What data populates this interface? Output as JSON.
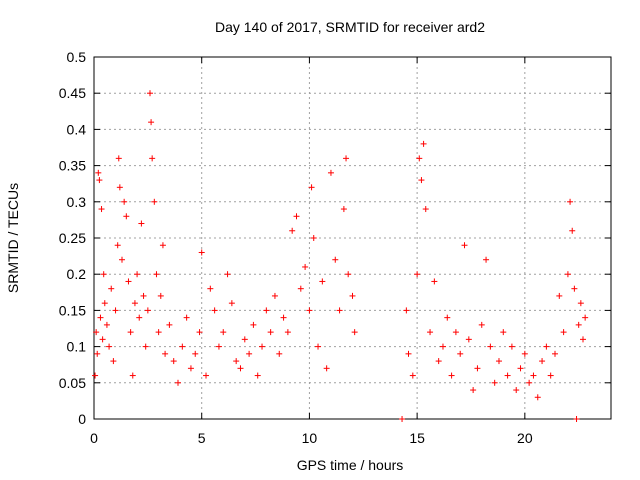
{
  "chart_data": {
    "type": "scatter",
    "title": "Day 140 of 2017, SRMTID for receiver ard2",
    "xlabel": "GPS time / hours",
    "ylabel": "SRMTID / TECUs",
    "xlim": [
      0,
      24
    ],
    "ylim": [
      0,
      0.5
    ],
    "x_ticks": [
      0,
      5,
      10,
      15,
      20
    ],
    "y_ticks": [
      0,
      0.05,
      0.1,
      0.15,
      0.2,
      0.25,
      0.3,
      0.35,
      0.4,
      0.45,
      0.5
    ],
    "x_tick_labels": [
      "0",
      "5",
      "10",
      "15",
      "20"
    ],
    "y_tick_labels": [
      "0",
      "0.05",
      "0.1",
      "0.15",
      "0.2",
      "0.25",
      "0.3",
      "0.35",
      "0.4",
      "0.45",
      "0.5"
    ],
    "grid": true,
    "marker": "+",
    "color": "#ff0000",
    "series": [
      {
        "name": "ard2",
        "points": [
          [
            0.05,
            0.06
          ],
          [
            0.1,
            0.12
          ],
          [
            0.15,
            0.09
          ],
          [
            0.2,
            0.34
          ],
          [
            0.25,
            0.33
          ],
          [
            0.3,
            0.14
          ],
          [
            0.35,
            0.29
          ],
          [
            0.4,
            0.11
          ],
          [
            0.45,
            0.2
          ],
          [
            0.5,
            0.16
          ],
          [
            0.6,
            0.13
          ],
          [
            0.7,
            0.1
          ],
          [
            0.8,
            0.18
          ],
          [
            0.9,
            0.08
          ],
          [
            1.0,
            0.15
          ],
          [
            1.1,
            0.24
          ],
          [
            1.15,
            0.36
          ],
          [
            1.2,
            0.32
          ],
          [
            1.3,
            0.22
          ],
          [
            1.4,
            0.3
          ],
          [
            1.5,
            0.28
          ],
          [
            1.6,
            0.19
          ],
          [
            1.7,
            0.12
          ],
          [
            1.8,
            0.06
          ],
          [
            1.9,
            0.16
          ],
          [
            2.0,
            0.2
          ],
          [
            2.1,
            0.14
          ],
          [
            2.2,
            0.27
          ],
          [
            2.3,
            0.17
          ],
          [
            2.4,
            0.1
          ],
          [
            2.5,
            0.15
          ],
          [
            2.6,
            0.45
          ],
          [
            2.65,
            0.41
          ],
          [
            2.7,
            0.36
          ],
          [
            2.8,
            0.3
          ],
          [
            2.9,
            0.2
          ],
          [
            3.0,
            0.12
          ],
          [
            3.1,
            0.17
          ],
          [
            3.2,
            0.24
          ],
          [
            3.3,
            0.09
          ],
          [
            3.5,
            0.13
          ],
          [
            3.7,
            0.08
          ],
          [
            3.9,
            0.05
          ],
          [
            4.1,
            0.1
          ],
          [
            4.3,
            0.14
          ],
          [
            4.5,
            0.07
          ],
          [
            4.7,
            0.09
          ],
          [
            4.9,
            0.12
          ],
          [
            5.0,
            0.23
          ],
          [
            5.2,
            0.06
          ],
          [
            5.4,
            0.18
          ],
          [
            5.6,
            0.15
          ],
          [
            5.8,
            0.1
          ],
          [
            6.0,
            0.12
          ],
          [
            6.2,
            0.2
          ],
          [
            6.4,
            0.16
          ],
          [
            6.6,
            0.08
          ],
          [
            6.8,
            0.07
          ],
          [
            7.0,
            0.11
          ],
          [
            7.2,
            0.09
          ],
          [
            7.4,
            0.13
          ],
          [
            7.6,
            0.06
          ],
          [
            7.8,
            0.1
          ],
          [
            8.0,
            0.15
          ],
          [
            8.2,
            0.12
          ],
          [
            8.4,
            0.17
          ],
          [
            8.6,
            0.09
          ],
          [
            8.8,
            0.14
          ],
          [
            9.0,
            0.12
          ],
          [
            9.2,
            0.26
          ],
          [
            9.4,
            0.28
          ],
          [
            9.6,
            0.18
          ],
          [
            9.8,
            0.21
          ],
          [
            10.0,
            0.15
          ],
          [
            10.1,
            0.32
          ],
          [
            10.2,
            0.25
          ],
          [
            10.4,
            0.1
          ],
          [
            10.6,
            0.19
          ],
          [
            10.8,
            0.07
          ],
          [
            11.0,
            0.34
          ],
          [
            11.2,
            0.22
          ],
          [
            11.4,
            0.15
          ],
          [
            11.6,
            0.29
          ],
          [
            11.7,
            0.36
          ],
          [
            11.8,
            0.2
          ],
          [
            12.0,
            0.17
          ],
          [
            12.1,
            0.12
          ],
          [
            14.3,
            0.0
          ],
          [
            14.5,
            0.15
          ],
          [
            14.6,
            0.09
          ],
          [
            14.8,
            0.06
          ],
          [
            15.0,
            0.2
          ],
          [
            15.1,
            0.36
          ],
          [
            15.2,
            0.33
          ],
          [
            15.3,
            0.38
          ],
          [
            15.4,
            0.29
          ],
          [
            15.6,
            0.12
          ],
          [
            15.8,
            0.19
          ],
          [
            16.0,
            0.08
          ],
          [
            16.2,
            0.1
          ],
          [
            16.4,
            0.14
          ],
          [
            16.6,
            0.06
          ],
          [
            16.8,
            0.12
          ],
          [
            17.0,
            0.09
          ],
          [
            17.2,
            0.24
          ],
          [
            17.4,
            0.11
          ],
          [
            17.6,
            0.04
          ],
          [
            17.8,
            0.07
          ],
          [
            18.0,
            0.13
          ],
          [
            18.2,
            0.22
          ],
          [
            18.4,
            0.1
          ],
          [
            18.6,
            0.05
          ],
          [
            18.8,
            0.08
          ],
          [
            19.0,
            0.12
          ],
          [
            19.2,
            0.06
          ],
          [
            19.4,
            0.1
          ],
          [
            19.6,
            0.04
          ],
          [
            19.8,
            0.07
          ],
          [
            20.0,
            0.09
          ],
          [
            20.2,
            0.05
          ],
          [
            20.4,
            0.06
          ],
          [
            20.6,
            0.03
          ],
          [
            20.8,
            0.08
          ],
          [
            21.0,
            0.1
          ],
          [
            21.2,
            0.06
          ],
          [
            21.4,
            0.09
          ],
          [
            21.6,
            0.17
          ],
          [
            21.8,
            0.12
          ],
          [
            22.0,
            0.2
          ],
          [
            22.1,
            0.3
          ],
          [
            22.2,
            0.26
          ],
          [
            22.3,
            0.18
          ],
          [
            22.4,
            0.0
          ],
          [
            22.5,
            0.13
          ],
          [
            22.6,
            0.16
          ],
          [
            22.7,
            0.11
          ],
          [
            22.8,
            0.14
          ]
        ]
      }
    ]
  }
}
